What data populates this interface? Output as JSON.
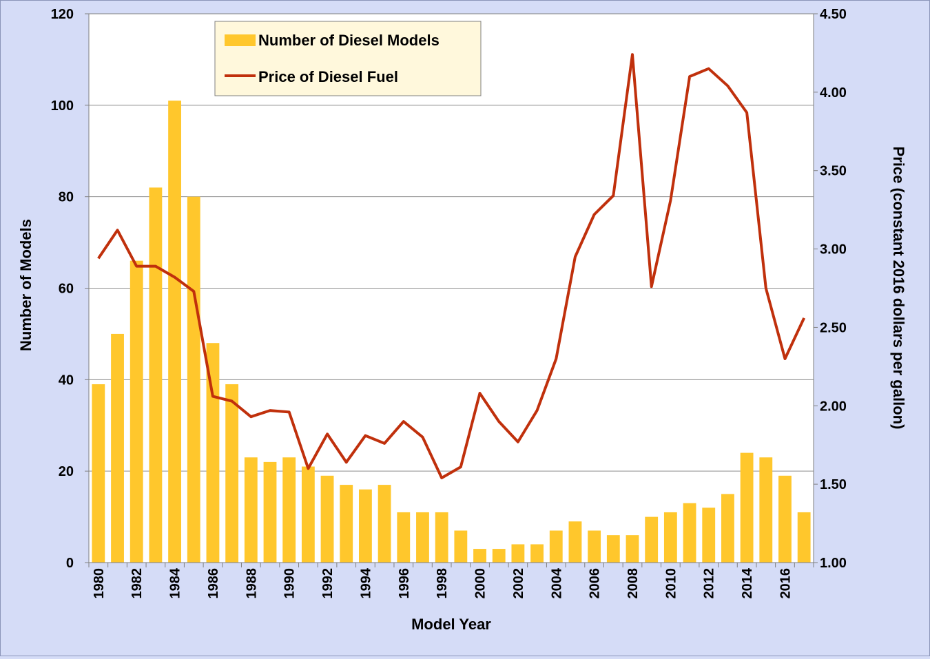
{
  "chart_data": {
    "type": "bar",
    "xlabel": "Model Year",
    "ylabel": "Number of Models",
    "y2label": "Price (constant 2016 dollars per gallon)",
    "ylim": [
      0,
      120
    ],
    "y2lim": [
      1.0,
      4.5
    ],
    "yticks": [
      "0",
      "20",
      "40",
      "60",
      "80",
      "100",
      "120"
    ],
    "y2ticks": [
      "1.00",
      "1.50",
      "2.00",
      "2.50",
      "3.00",
      "3.50",
      "4.00",
      "4.50"
    ],
    "categories": [
      "1980",
      "1981",
      "1982",
      "1983",
      "1984",
      "1985",
      "1986",
      "1987",
      "1988",
      "1989",
      "1990",
      "1991",
      "1992",
      "1993",
      "1994",
      "1995",
      "1996",
      "1997",
      "1998",
      "1999",
      "2000",
      "2001",
      "2002",
      "2003",
      "2004",
      "2005",
      "2006",
      "2007",
      "2008",
      "2009",
      "2010",
      "2011",
      "2012",
      "2013",
      "2014",
      "2015",
      "2016",
      "2017"
    ],
    "xtick_labels": [
      "1980",
      "1982",
      "1984",
      "1986",
      "1988",
      "1990",
      "1992",
      "1994",
      "1996",
      "1998",
      "2000",
      "2002",
      "2004",
      "2006",
      "2008",
      "2010",
      "2012",
      "2014",
      "2016"
    ],
    "series": [
      {
        "name": "Number of Diesel Models",
        "type": "bar",
        "axis": "left",
        "color": "#ffc72c",
        "values": [
          39,
          50,
          66,
          82,
          101,
          80,
          48,
          39,
          23,
          22,
          23,
          21,
          19,
          17,
          16,
          17,
          11,
          11,
          11,
          7,
          3,
          3,
          4,
          4,
          7,
          9,
          7,
          6,
          6,
          10,
          11,
          13,
          12,
          15,
          24,
          23,
          19,
          11
        ]
      },
      {
        "name": "Price of Diesel Fuel",
        "type": "line",
        "axis": "right",
        "color": "#c0300c",
        "values": [
          2.94,
          3.12,
          2.89,
          2.89,
          2.82,
          2.73,
          2.06,
          2.03,
          1.93,
          1.97,
          1.96,
          1.6,
          1.82,
          1.64,
          1.81,
          1.76,
          1.9,
          1.8,
          1.54,
          1.61,
          2.08,
          1.9,
          1.77,
          1.97,
          2.3,
          2.95,
          3.22,
          3.34,
          4.24,
          2.76,
          3.31,
          4.1,
          4.15,
          4.04,
          3.87,
          2.75,
          2.3,
          2.56
        ]
      }
    ],
    "legend": {
      "position": "top-left-inside"
    },
    "grid": {
      "horizontal": true
    }
  }
}
